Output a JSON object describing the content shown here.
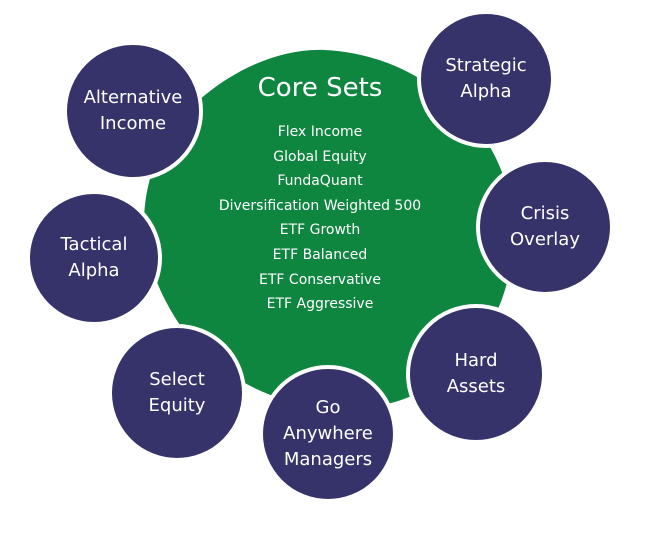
{
  "colors": {
    "core_fill": "#0f8640",
    "satellite_fill": "#35336a",
    "satellite_border": "#ffffff",
    "text": "#ffffff"
  },
  "core": {
    "title": "Core Sets",
    "items": [
      "Flex Income",
      "Global Equity",
      "FundaQuant",
      "Diversification Weighted 500",
      "ETF Growth",
      "ETF Balanced",
      "ETF Conservative",
      "ETF Aggressive"
    ]
  },
  "satellites": {
    "alternative_income": "Alternative\nIncome",
    "strategic_alpha": "Strategic\nAlpha",
    "crisis_overlay": "Crisis\nOverlay",
    "tactical_alpha": "Tactical\nAlpha",
    "hard_assets": "Hard\nAssets",
    "select_equity": "Select\nEquity",
    "go_anywhere_managers": "Go\nAnywhere\nManagers"
  }
}
